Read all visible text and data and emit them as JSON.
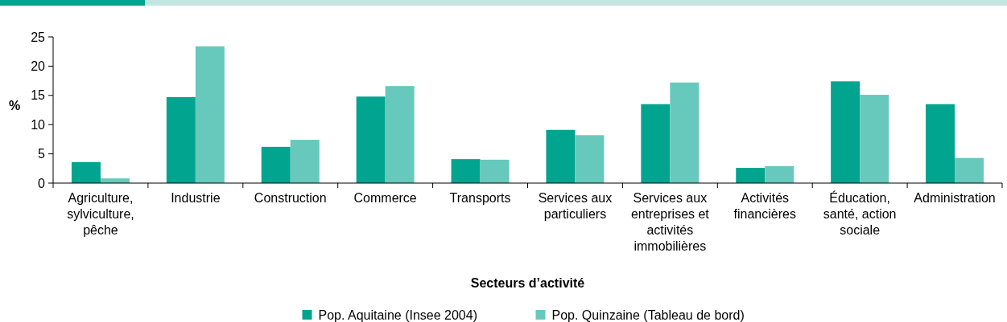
{
  "chart_data": {
    "type": "bar",
    "xlabel": "Secteurs d’activité",
    "ylabel": "%",
    "categories": [
      "Agriculture, sylviculture, pêche",
      "Industrie",
      "Construction",
      "Commerce",
      "Transports",
      "Services aux particuliers",
      "Services aux entreprises et activités immobilières",
      "Activités financières",
      "Éducation, santé, action sociale",
      "Administration"
    ],
    "series": [
      {
        "name": "Pop. Aquitaine (Insee 2004)",
        "color": "#00a48f",
        "values": [
          3.6,
          14.7,
          6.2,
          14.8,
          4.1,
          9.1,
          13.5,
          2.6,
          17.4,
          13.5
        ]
      },
      {
        "name": "Pop. Quinzaine (Tableau de bord)",
        "color": "#67c9bb",
        "values": [
          0.8,
          23.4,
          7.4,
          16.6,
          4.0,
          8.2,
          17.2,
          2.9,
          15.1,
          4.3
        ]
      }
    ],
    "ylim": [
      0,
      25
    ],
    "yticks": [
      0,
      5,
      10,
      15,
      20,
      25
    ],
    "grid": false,
    "legend": "bottom"
  }
}
